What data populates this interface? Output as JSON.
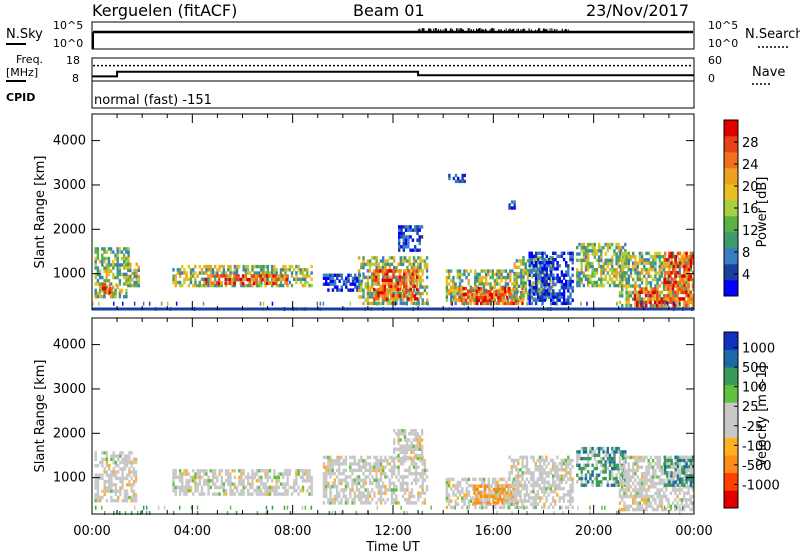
{
  "header": {
    "radar": "Kerguelen (fitACF)",
    "beam": "Beam 01",
    "date": "23/Nov/2017"
  },
  "status_panel": {
    "nsky_label": "N.Sky",
    "nsearch_label": "N.Search",
    "nsky_ticks": [
      "10^5",
      "10^0"
    ],
    "nsearch_ticks": [
      "10^5",
      "10^0"
    ],
    "freq_label_1": "Freq.",
    "freq_label_2": "[MHz]",
    "freq_ticks": [
      "18",
      "8"
    ],
    "nave_label": "Nave",
    "nave_ticks": [
      "60",
      "0"
    ],
    "cpid_label": "CPID",
    "cpid_value": "normal (fast) -151",
    "freq_steps_mhz": [
      {
        "t": 0,
        "v": 10
      },
      {
        "t": 1,
        "v": 12
      },
      {
        "t": 13,
        "v": 10.5
      },
      {
        "t": 24,
        "v": 10.5
      }
    ],
    "nave_level": 40
  },
  "colors": {
    "power": [
      "#0000ff",
      "#1a3fa0",
      "#3a7ec0",
      "#3f9a70",
      "#5bb046",
      "#a8d040",
      "#e8c020",
      "#f0a020",
      "#f07020",
      "#e84018",
      "#e00000"
    ],
    "velocity": [
      "#e00000",
      "#ff4000",
      "#ff8c1a",
      "#ffb020",
      "#c8c8c8",
      "#c8c8c8",
      "#60c040",
      "#3a9a58",
      "#1a6aa8",
      "#1030c0"
    ]
  },
  "chart_data": [
    {
      "type": "heatmap",
      "name_hidden": "power",
      "ylabel": "Slant Range [km]",
      "yticks": [
        1000,
        2000,
        3000,
        4000
      ],
      "ylim": [
        180,
        4600
      ],
      "xlim": [
        0,
        24
      ],
      "colorbar_label": "Power [dB]",
      "colorbar_ticks": [
        "28",
        "24",
        "20",
        "16",
        "12",
        "8",
        "4"
      ],
      "colorbar_range": [
        0,
        32
      ],
      "regions": [
        {
          "t0": 0.1,
          "t1": 1.5,
          "r0": 450,
          "r1": 1600,
          "level": "mid"
        },
        {
          "t0": 0.3,
          "t1": 1.2,
          "r0": 550,
          "r1": 800,
          "level": "high"
        },
        {
          "t0": 1.4,
          "t1": 1.9,
          "r0": 700,
          "r1": 1250,
          "level": "mid"
        },
        {
          "t0": 3.2,
          "t1": 8.8,
          "r0": 700,
          "r1": 1200,
          "level": "mid"
        },
        {
          "t0": 4.5,
          "t1": 7.8,
          "r0": 750,
          "r1": 1000,
          "level": "high"
        },
        {
          "t0": 9.2,
          "t1": 10.8,
          "r0": 600,
          "r1": 1000,
          "level": "low"
        },
        {
          "t0": 10.6,
          "t1": 13.4,
          "r0": 300,
          "r1": 1400,
          "level": "mid"
        },
        {
          "t0": 11.2,
          "t1": 13.0,
          "r0": 400,
          "r1": 1100,
          "level": "high"
        },
        {
          "t0": 12.2,
          "t1": 13.2,
          "r0": 1500,
          "r1": 2100,
          "level": "low"
        },
        {
          "t0": 14.1,
          "t1": 16.8,
          "r0": 300,
          "r1": 1100,
          "level": "mid"
        },
        {
          "t0": 14.6,
          "t1": 17.2,
          "r0": 300,
          "r1": 700,
          "level": "high"
        },
        {
          "t0": 16.8,
          "t1": 18.4,
          "r0": 400,
          "r1": 1400,
          "level": "mid"
        },
        {
          "t0": 17.4,
          "t1": 19.2,
          "r0": 300,
          "r1": 1500,
          "level": "low"
        },
        {
          "t0": 19.3,
          "t1": 21.3,
          "r0": 700,
          "r1": 1700,
          "level": "mid"
        },
        {
          "t0": 21.0,
          "t1": 24.0,
          "r0": 250,
          "r1": 1500,
          "level": "mid"
        },
        {
          "t0": 21.6,
          "t1": 24.0,
          "r0": 250,
          "r1": 700,
          "level": "high"
        },
        {
          "t0": 22.8,
          "t1": 24.0,
          "r0": 700,
          "r1": 1500,
          "level": "high"
        },
        {
          "t0": 14.2,
          "t1": 14.9,
          "r0": 3050,
          "r1": 3250,
          "level": "low"
        },
        {
          "t0": 16.6,
          "t1": 16.9,
          "r0": 2450,
          "r1": 2650,
          "level": "low"
        },
        {
          "t0": 0.0,
          "t1": 24.0,
          "r0": 180,
          "r1": 420,
          "level": "scatter"
        }
      ]
    },
    {
      "type": "heatmap",
      "name_hidden": "velocity",
      "ylabel": "Slant Range [km]",
      "yticks": [
        1000,
        2000,
        3000,
        4000
      ],
      "ylim": [
        180,
        4600
      ],
      "xlim": [
        0,
        24
      ],
      "xticks": [
        "00:00",
        "04:00",
        "08:00",
        "12:00",
        "16:00",
        "20:00",
        "00:00"
      ],
      "xlabel": "Time UT",
      "colorbar_label": "Velocity [m s-1]",
      "colorbar_ticks": [
        "1000",
        "500",
        "100",
        "25",
        "-25",
        "-100",
        "-500",
        "-1000"
      ],
      "regions": [
        {
          "t0": 0.1,
          "t1": 1.8,
          "r0": 450,
          "r1": 1600,
          "level": "grey"
        },
        {
          "t0": 3.2,
          "t1": 8.8,
          "r0": 600,
          "r1": 1200,
          "level": "grey"
        },
        {
          "t0": 9.2,
          "t1": 13.4,
          "r0": 400,
          "r1": 1500,
          "level": "grey"
        },
        {
          "t0": 12.0,
          "t1": 13.2,
          "r0": 1400,
          "r1": 2100,
          "level": "grey"
        },
        {
          "t0": 14.1,
          "t1": 17.0,
          "r0": 300,
          "r1": 1000,
          "level": "grey"
        },
        {
          "t0": 15.2,
          "t1": 17.0,
          "r0": 400,
          "r1": 850,
          "level": "orange"
        },
        {
          "t0": 16.6,
          "t1": 19.2,
          "r0": 300,
          "r1": 1500,
          "level": "grey"
        },
        {
          "t0": 19.3,
          "t1": 21.3,
          "r0": 800,
          "r1": 1700,
          "level": "green"
        },
        {
          "t0": 21.0,
          "t1": 24.0,
          "r0": 250,
          "r1": 1500,
          "level": "grey"
        },
        {
          "t0": 22.8,
          "t1": 24.0,
          "r0": 800,
          "r1": 1500,
          "level": "green"
        },
        {
          "t0": 0.0,
          "t1": 24.0,
          "r0": 180,
          "r1": 420,
          "level": "scatter"
        }
      ]
    }
  ]
}
